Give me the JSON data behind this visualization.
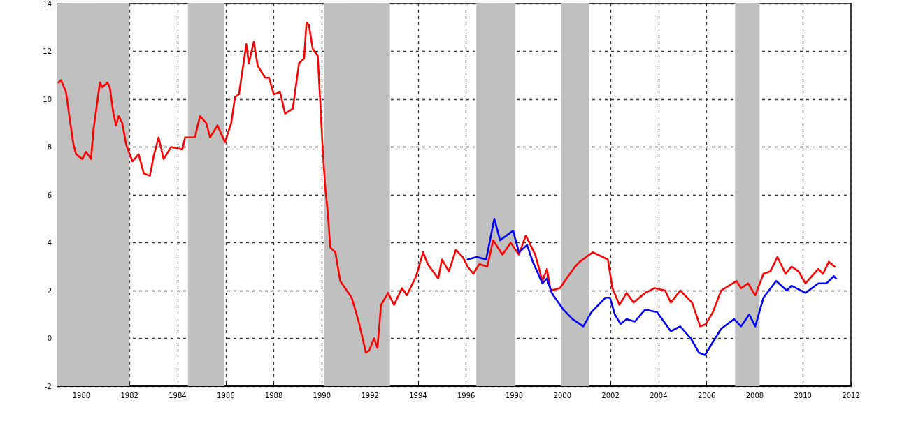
{
  "chart_data": {
    "type": "line",
    "xlim": [
      1979,
      2012
    ],
    "xticks": [
      1980,
      1982,
      1984,
      1986,
      1988,
      1990,
      1992,
      1994,
      1996,
      1998,
      2000,
      2002,
      2004,
      2006,
      2008,
      2010,
      2012
    ],
    "ylim": [
      -2,
      14
    ],
    "yticks": [
      -2,
      0,
      2,
      4,
      6,
      8,
      10,
      12,
      14
    ],
    "grid": true,
    "line_style": "solid",
    "marker": "none",
    "bands": [
      {
        "axis": "x",
        "from": 1979,
        "to": 1982,
        "color": "#c0c0c0"
      },
      {
        "axis": "x",
        "from": 1984.43,
        "to": 1985.94,
        "color": "#c0c0c0"
      },
      {
        "axis": "x",
        "from": 1990.09,
        "to": 1992.83,
        "color": "#c0c0c0"
      },
      {
        "axis": "x",
        "from": 1996.42,
        "to": 1998.05,
        "color": "#c0c0c0"
      },
      {
        "axis": "x",
        "from": 1999.94,
        "to": 2001.11,
        "color": "#c0c0c0"
      },
      {
        "axis": "x",
        "from": 2007.18,
        "to": 2008.2,
        "color": "#c0c0c0"
      }
    ],
    "series": [
      {
        "color": "#ff0000",
        "x": [
          1979.05,
          1979.15,
          1979.36,
          1979.51,
          1979.67,
          1979.78,
          1980.04,
          1980.19,
          1980.4,
          1980.5,
          1980.77,
          1980.87,
          1981.08,
          1981.18,
          1981.33,
          1981.44,
          1981.55,
          1981.7,
          1981.86,
          1982.12,
          1982.38,
          1982.59,
          1982.85,
          1983.0,
          1983.21,
          1983.42,
          1983.73,
          1984.2,
          1984.31,
          1984.72,
          1984.93,
          1985.19,
          1985.35,
          1985.66,
          1985.97,
          1986.23,
          1986.39,
          1986.55,
          1986.86,
          1986.96,
          1987.17,
          1987.33,
          1987.64,
          1987.8,
          1988.0,
          1988.26,
          1988.47,
          1988.79,
          1989.05,
          1989.26,
          1989.36,
          1989.46,
          1989.62,
          1989.83,
          1989.93,
          1990.04,
          1990.14,
          1990.25,
          1990.35,
          1990.56,
          1990.76,
          1990.9,
          1991.24,
          1991.53,
          1991.83,
          1991.97,
          1992.17,
          1992.31,
          1992.46,
          1992.75,
          1993.0,
          1993.33,
          1993.53,
          1993.92,
          1994.21,
          1994.4,
          1994.84,
          1994.99,
          1995.28,
          1995.57,
          1995.86,
          1996.06,
          1996.3,
          1996.54,
          1996.88,
          1997.12,
          1997.51,
          1997.85,
          1998.19,
          1998.48,
          1998.87,
          1999.17,
          1999.36,
          1999.51,
          1999.9,
          2000.24,
          2000.53,
          2000.72,
          2001.26,
          2001.89,
          2002.08,
          2002.37,
          2002.67,
          2002.96,
          2003.44,
          2003.83,
          2004.27,
          2004.51,
          2004.9,
          2005.39,
          2005.73,
          2005.97,
          2006.26,
          2006.6,
          2007.24,
          2007.43,
          2007.72,
          2008.02,
          2008.36,
          2008.65,
          2008.94,
          2009.28,
          2009.53,
          2009.82,
          2010.11,
          2010.64,
          2010.84,
          2011.08,
          2011.32
        ],
        "values": [
          10.7,
          10.8,
          10.3,
          9.2,
          8.1,
          7.7,
          7.5,
          7.8,
          7.5,
          8.7,
          10.7,
          10.5,
          10.7,
          10.5,
          9.4,
          8.9,
          9.3,
          9.0,
          8.1,
          7.4,
          7.7,
          6.9,
          6.8,
          7.6,
          8.4,
          7.5,
          8.0,
          7.9,
          8.4,
          8.4,
          9.3,
          9.0,
          8.4,
          8.9,
          8.2,
          9.0,
          10.1,
          10.2,
          12.3,
          11.5,
          12.4,
          11.4,
          10.9,
          10.9,
          10.2,
          10.3,
          9.4,
          9.6,
          11.5,
          11.7,
          13.2,
          13.1,
          12.1,
          11.8,
          9.9,
          7.8,
          6.3,
          5.2,
          3.8,
          3.6,
          2.4,
          2.2,
          1.7,
          0.7,
          -0.6,
          -0.5,
          0.0,
          -0.4,
          1.4,
          1.9,
          1.4,
          2.1,
          1.8,
          2.6,
          3.6,
          3.1,
          2.5,
          3.3,
          2.8,
          3.7,
          3.4,
          3.0,
          2.7,
          3.1,
          3.0,
          4.1,
          3.5,
          4.0,
          3.5,
          4.3,
          3.5,
          2.4,
          2.9,
          2.0,
          2.1,
          2.6,
          3.0,
          3.2,
          3.6,
          3.3,
          2.1,
          1.4,
          1.9,
          1.5,
          1.9,
          2.1,
          2.0,
          1.5,
          2.0,
          1.5,
          0.5,
          0.6,
          1.1,
          2.0,
          2.4,
          2.1,
          2.3,
          1.8,
          2.7,
          2.8,
          3.4,
          2.7,
          3.0,
          2.8,
          2.3,
          2.9,
          2.7,
          3.2,
          3.0
        ]
      },
      {
        "color": "#0000ff",
        "x": [
          1996.06,
          1996.44,
          1996.83,
          1997.17,
          1997.41,
          1997.95,
          1998.19,
          1998.53,
          1998.77,
          1999.17,
          1999.36,
          1999.56,
          2000.04,
          2000.43,
          2000.87,
          2001.21,
          2001.79,
          2001.98,
          2002.18,
          2002.42,
          2002.67,
          2003.01,
          2003.44,
          2003.93,
          2004.51,
          2004.9,
          2005.34,
          2005.68,
          2005.93,
          2006.17,
          2006.6,
          2007.14,
          2007.43,
          2007.77,
          2008.02,
          2008.36,
          2008.89,
          2009.33,
          2009.53,
          2010.11,
          2010.64,
          2010.98,
          2011.29,
          2011.38
        ],
        "values": [
          3.3,
          3.4,
          3.3,
          5.0,
          4.1,
          4.5,
          3.6,
          3.9,
          3.2,
          2.3,
          2.5,
          1.9,
          1.2,
          0.8,
          0.5,
          1.1,
          1.7,
          1.7,
          1.0,
          0.6,
          0.8,
          0.7,
          1.2,
          1.1,
          0.3,
          0.5,
          0.0,
          -0.6,
          -0.7,
          -0.3,
          0.4,
          0.8,
          0.5,
          1.0,
          0.5,
          1.7,
          2.4,
          2.0,
          2.2,
          1.9,
          2.3,
          2.3,
          2.6,
          2.5
        ]
      }
    ]
  }
}
